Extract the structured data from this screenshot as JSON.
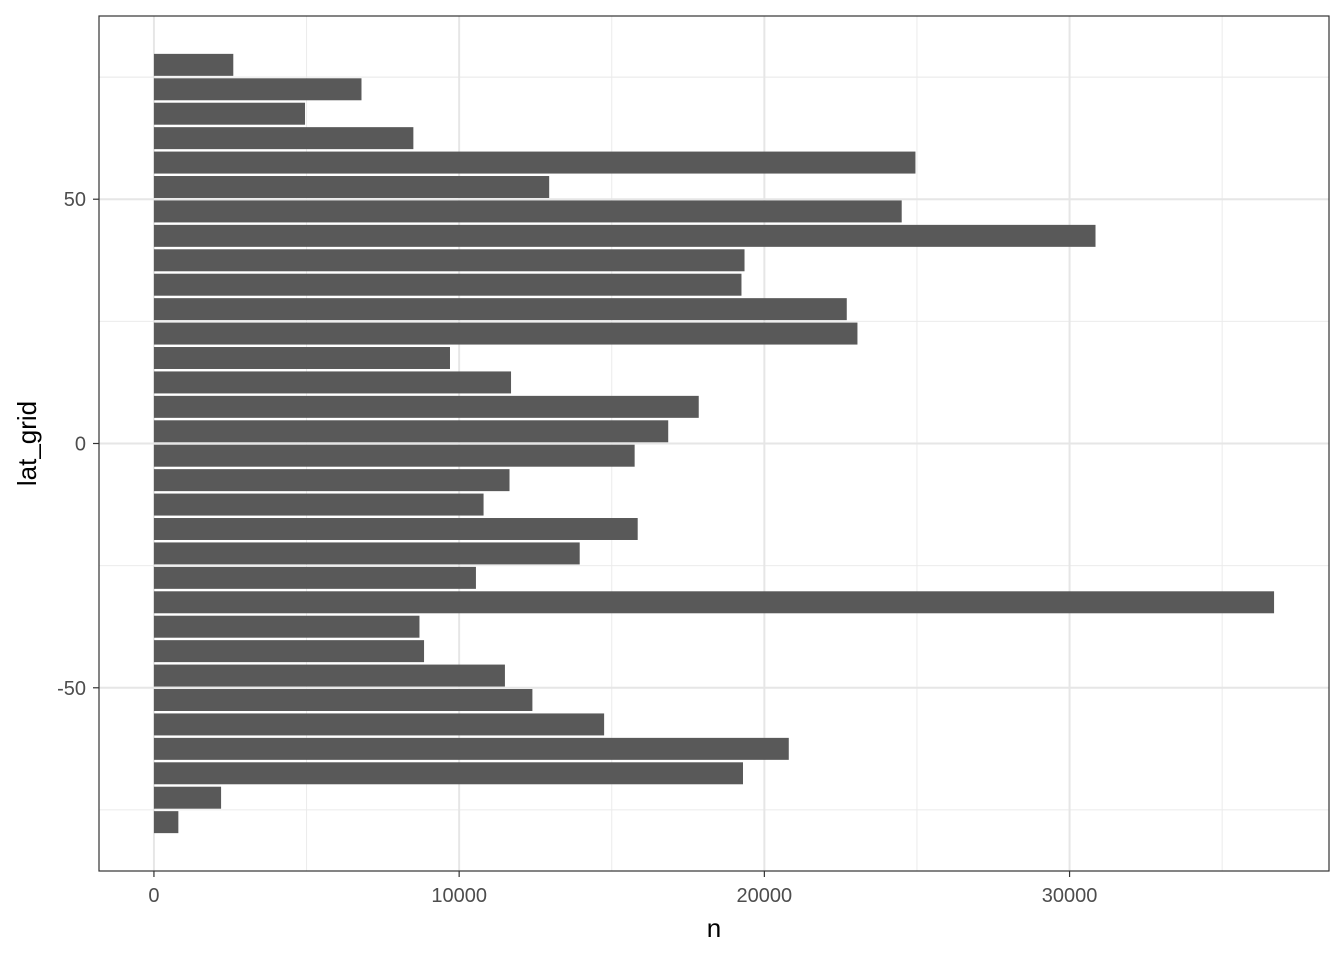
{
  "chart_data": {
    "type": "bar",
    "orientation": "horizontal",
    "title": "",
    "xlabel": "n",
    "ylabel": "lat_grid",
    "xlim": [
      -1800,
      38500
    ],
    "ylim": [
      -87.5,
      87.5
    ],
    "x_ticks": [
      0,
      10000,
      20000,
      30000
    ],
    "y_ticks": [
      -50,
      0,
      50
    ],
    "grid": true,
    "bar_color": "#595959",
    "bar_height": 4.5,
    "bars": [
      {
        "lat": 77.5,
        "n": 2600
      },
      {
        "lat": 72.5,
        "n": 6800
      },
      {
        "lat": 67.5,
        "n": 4950
      },
      {
        "lat": 62.5,
        "n": 8500
      },
      {
        "lat": 57.5,
        "n": 24950
      },
      {
        "lat": 52.5,
        "n": 12950
      },
      {
        "lat": 47.5,
        "n": 24500
      },
      {
        "lat": 42.5,
        "n": 30850
      },
      {
        "lat": 37.5,
        "n": 19350
      },
      {
        "lat": 32.5,
        "n": 19250
      },
      {
        "lat": 27.5,
        "n": 22700
      },
      {
        "lat": 22.5,
        "n": 23050
      },
      {
        "lat": 17.5,
        "n": 9700
      },
      {
        "lat": 12.5,
        "n": 11700
      },
      {
        "lat": 7.5,
        "n": 17850
      },
      {
        "lat": 2.5,
        "n": 16850
      },
      {
        "lat": -2.5,
        "n": 15750
      },
      {
        "lat": -7.5,
        "n": 11650
      },
      {
        "lat": -12.5,
        "n": 10800
      },
      {
        "lat": -17.5,
        "n": 15850
      },
      {
        "lat": -22.5,
        "n": 13950
      },
      {
        "lat": -27.5,
        "n": 10550
      },
      {
        "lat": -32.5,
        "n": 36700
      },
      {
        "lat": -37.5,
        "n": 8700
      },
      {
        "lat": -42.5,
        "n": 8850
      },
      {
        "lat": -47.5,
        "n": 11500
      },
      {
        "lat": -52.5,
        "n": 12400
      },
      {
        "lat": -57.5,
        "n": 14750
      },
      {
        "lat": -62.5,
        "n": 20800
      },
      {
        "lat": -67.5,
        "n": 19300
      },
      {
        "lat": -72.5,
        "n": 2200
      },
      {
        "lat": -77.5,
        "n": 800
      }
    ]
  }
}
